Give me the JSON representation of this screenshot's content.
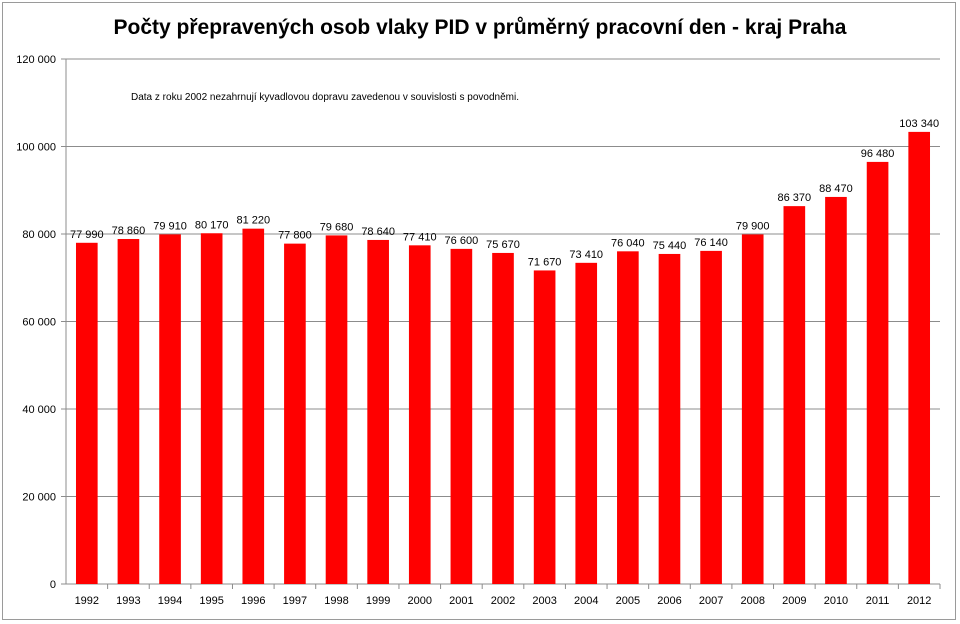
{
  "chart_data": {
    "type": "bar",
    "title": "Počty přepravených osob vlaky PID v průměrný pracovní den - kraj Praha",
    "annotation": "Data z roku 2002 nezahrnují kyvadlovou dopravu zavedenou v souvislosti s povodněmi.",
    "categories": [
      "1992",
      "1993",
      "1994",
      "1995",
      "1996",
      "1997",
      "1998",
      "1999",
      "2000",
      "2001",
      "2002",
      "2003",
      "2004",
      "2005",
      "2006",
      "2007",
      "2008",
      "2009",
      "2010",
      "2011",
      "2012"
    ],
    "values": [
      77990,
      78860,
      79910,
      80170,
      81220,
      77800,
      79680,
      78640,
      77410,
      76600,
      75670,
      71670,
      73410,
      76040,
      75440,
      76140,
      79900,
      86370,
      88470,
      96480,
      103340
    ],
    "value_labels": [
      "77 990",
      "78 860",
      "79 910",
      "80 170",
      "81 220",
      "77 800",
      "79 680",
      "78 640",
      "77 410",
      "76 600",
      "75 670",
      "71 670",
      "73 410",
      "76 040",
      "75 440",
      "76 140",
      "79 900",
      "86 370",
      "88 470",
      "96 480",
      "103 340"
    ],
    "ylim": [
      0,
      120000
    ],
    "yticks": [
      0,
      20000,
      40000,
      60000,
      80000,
      100000,
      120000
    ],
    "ytick_labels": [
      "0",
      "20 000",
      "40 000",
      "60 000",
      "80 000",
      "100 000",
      "120 000"
    ],
    "xlabel": "",
    "ylabel": "",
    "grid": true,
    "bar_color": "#ff0000",
    "grid_color": "#8c8c8c"
  }
}
